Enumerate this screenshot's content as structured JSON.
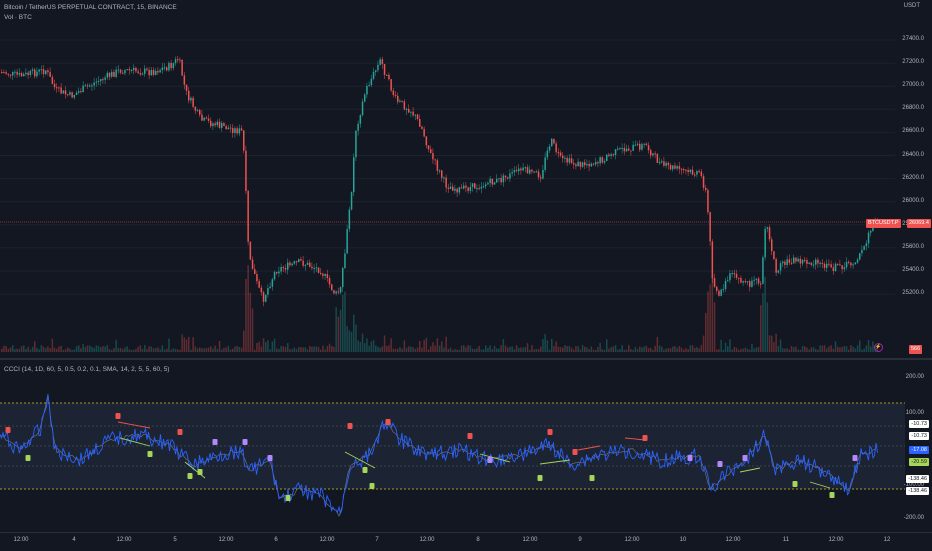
{
  "header": {
    "symbol_title": "Bitcoin / TetherUS PERPETUAL CONTRACT, 15, BINANCE",
    "volume_legend": "Vol · BTC",
    "currency": "USDT"
  },
  "price_axis": {
    "labels": [
      "27400.0",
      "27200.0",
      "27000.0",
      "26800.0",
      "26600.0",
      "26400.0",
      "26200.0",
      "26000.0",
      "25800.0",
      "25600.0",
      "25400.0",
      "25200.0"
    ],
    "last_price_symbol": "BTCUSDT.P",
    "last_price": "26069.4",
    "volume_badge": "566"
  },
  "oscillator": {
    "legend": "CCCI (14, 1D, 60, 5, 0.5, 0.2, 0.1, SMA, 14, 2, 5, 5, 60, 5)",
    "axis_labels": [
      "200.00",
      "100.00",
      "-100.00",
      "-200.00"
    ],
    "badges": [
      {
        "text": "-10.73",
        "bg": "#ffffff",
        "fg": "#131722"
      },
      {
        "text": "-10.73",
        "bg": "#ffffff",
        "fg": "#131722"
      },
      {
        "text": "-17.08",
        "bg": "#2962ff",
        "fg": "#ffffff"
      },
      {
        "text": "-20.59",
        "bg": "#a5d65a",
        "fg": "#131722"
      },
      {
        "text": "-138.46",
        "bg": "#ffffff",
        "fg": "#131722"
      },
      {
        "text": "-138.46",
        "bg": "#ffffff",
        "fg": "#131722"
      }
    ]
  },
  "time_axis": {
    "labels": [
      "12:00",
      "4",
      "12:00",
      "5",
      "12:00",
      "6",
      "12:00",
      "7",
      "12:00",
      "8",
      "12:00",
      "9",
      "12:00",
      "10",
      "12:00",
      "11",
      "12:00",
      "12"
    ]
  },
  "colors": {
    "background": "#131722",
    "up": "#26a69a",
    "down": "#ef5350",
    "cci_line": "#2962ff",
    "signal_line": "#a5d65a",
    "band": "#1c2333"
  }
}
